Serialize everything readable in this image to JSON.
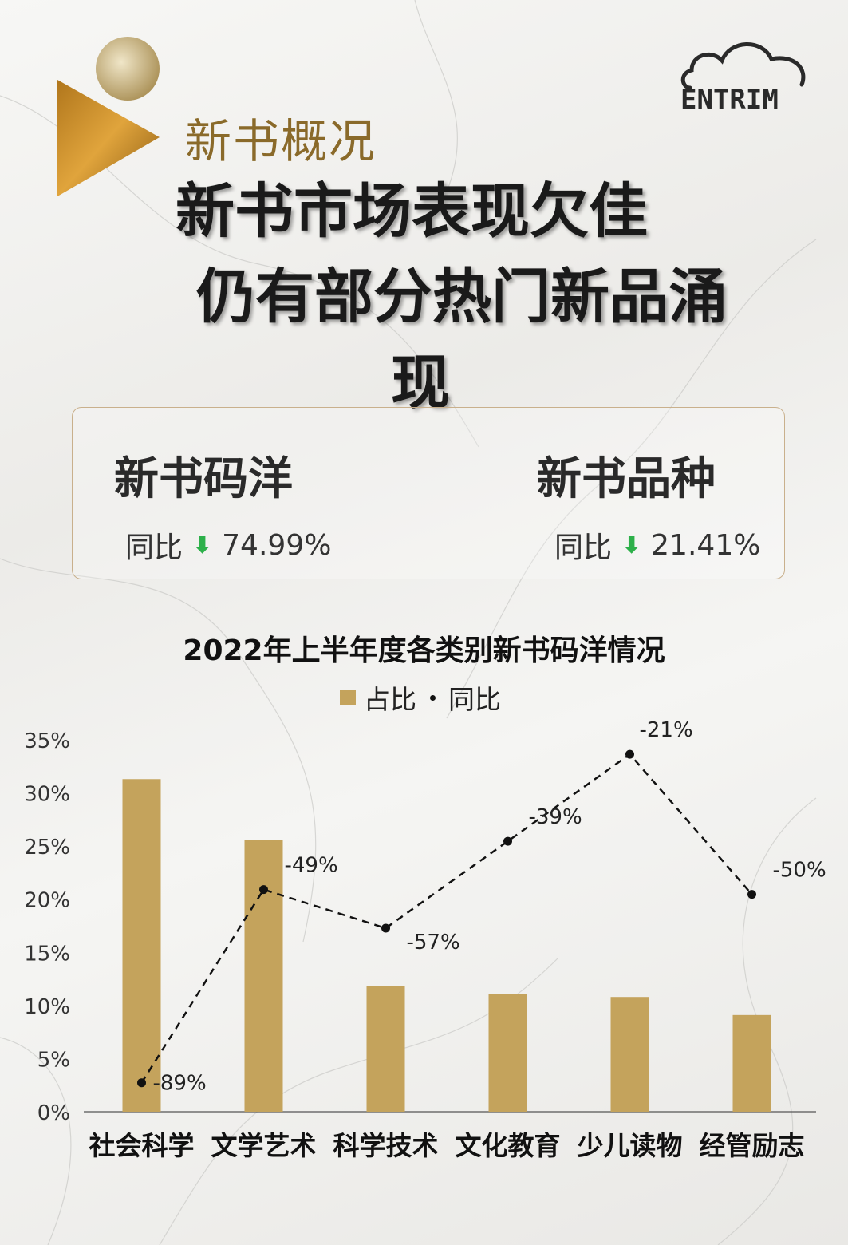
{
  "section_label": "新书概况",
  "headline": {
    "line1": "新书市场表现欠佳",
    "line2": "仍有部分热门新品涌",
    "line3": "现"
  },
  "stats": {
    "left": {
      "title": "新书码洋",
      "prefix": "同比",
      "arrow": "⬇",
      "value": "74.99%"
    },
    "right": {
      "title": "新书品种",
      "prefix": "同比",
      "arrow": "⬇",
      "value": "21.41%"
    }
  },
  "brand_logo_text": "ENTRIM",
  "colors": {
    "bar": "#c4a35c",
    "accent_gold": "#8a6a2a",
    "down_arrow": "#2db04a"
  },
  "chart_data": {
    "type": "bar",
    "title": "2022年上半年度各类别新书码洋情况",
    "legend": [
      "占比",
      "同比"
    ],
    "legend_position": "top-center",
    "categories": [
      "社会科学",
      "文学艺术",
      "科学技术",
      "文化教育",
      "少儿读物",
      "经管励志"
    ],
    "series": [
      {
        "name": "占比",
        "kind": "bar",
        "values": [
          31.3,
          25.6,
          11.8,
          11.1,
          10.8,
          9.1
        ]
      },
      {
        "name": "同比",
        "kind": "line",
        "style": "dashed",
        "values": [
          -89,
          -49,
          -57,
          -39,
          -21,
          -50
        ],
        "labels": [
          "-89%",
          "-49%",
          "-57%",
          "-39%",
          "-21%",
          "-50%"
        ]
      }
    ],
    "y_ticks": [
      "0%",
      "5%",
      "10%",
      "15%",
      "20%",
      "25%",
      "30%",
      "35%"
    ],
    "ylim": [
      0,
      35
    ],
    "y2lim": [
      -95,
      -18
    ],
    "grid": false
  }
}
